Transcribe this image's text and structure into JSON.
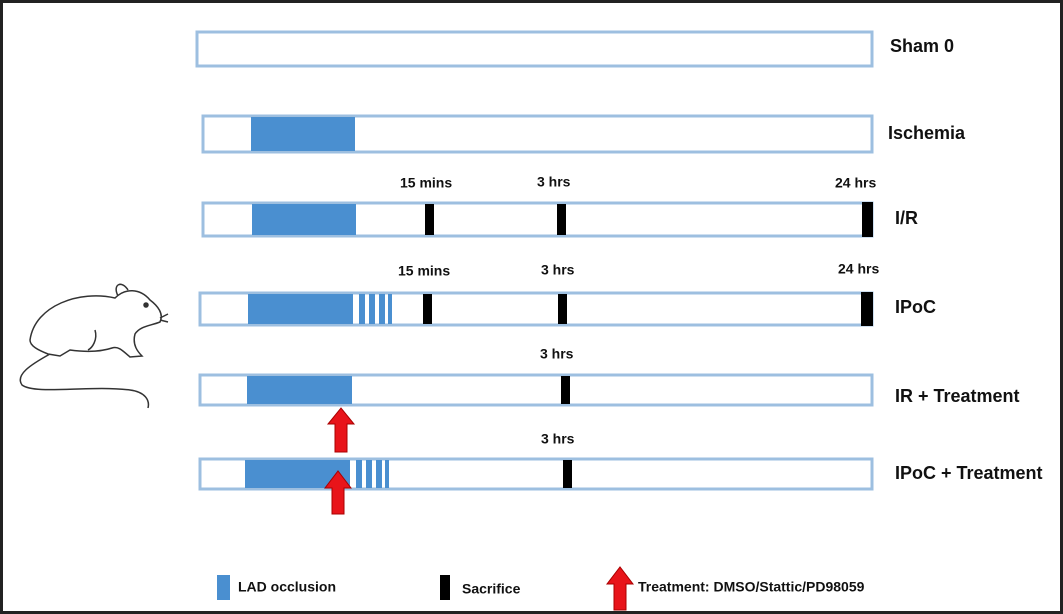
{
  "rows": [
    {
      "label": "Sham 0"
    },
    {
      "label": "Ischemia"
    },
    {
      "label": "I/R",
      "times": [
        "15 mins",
        "3 hrs",
        "24 hrs"
      ]
    },
    {
      "label": "IPoC",
      "times": [
        "15 mins",
        "3 hrs",
        "24 hrs"
      ]
    },
    {
      "label": "IR + Treatment",
      "times": [
        "3 hrs"
      ]
    },
    {
      "label": "IPoC + Treatment",
      "times": [
        "3 hrs"
      ]
    }
  ],
  "legend": [
    "LAD occlusion",
    "Sacrifice",
    "Treatment: DMSO/Stattic/PD98059"
  ]
}
